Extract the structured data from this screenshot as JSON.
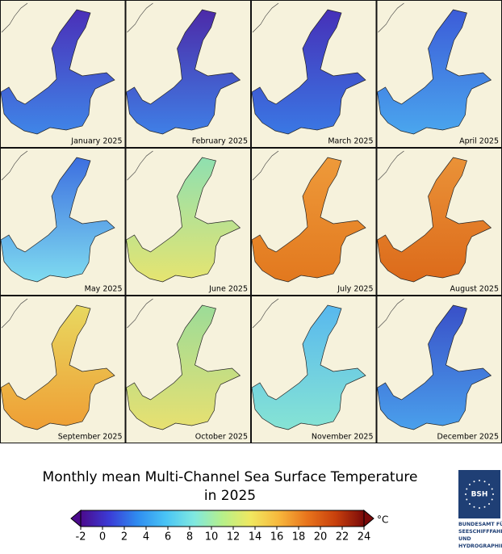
{
  "panels": [
    {
      "label": "January 2025",
      "colors": [
        "#4a2fb8",
        "#3f86e8"
      ]
    },
    {
      "label": "February 2025",
      "colors": [
        "#4c2aa8",
        "#3f7fe6"
      ]
    },
    {
      "label": "March 2025",
      "colors": [
        "#4630b8",
        "#3a78e4"
      ]
    },
    {
      "label": "April 2025",
      "colors": [
        "#3c5cd8",
        "#4aa6ee"
      ]
    },
    {
      "label": "May 2025",
      "colors": [
        "#3d6fe0",
        "#7fdcf0"
      ]
    },
    {
      "label": "June 2025",
      "colors": [
        "#8fe0b0",
        "#e6e470"
      ]
    },
    {
      "label": "July 2025",
      "colors": [
        "#ee9a3a",
        "#e2781e"
      ]
    },
    {
      "label": "August 2025",
      "colors": [
        "#ea9238",
        "#dc6a1a"
      ]
    },
    {
      "label": "September 2025",
      "colors": [
        "#e8d860",
        "#ef9e34"
      ]
    },
    {
      "label": "October 2025",
      "colors": [
        "#9cdc98",
        "#e8e070"
      ]
    },
    {
      "label": "November 2025",
      "colors": [
        "#58b8ee",
        "#86e4d4"
      ]
    },
    {
      "label": "December 2025",
      "colors": [
        "#3950c8",
        "#4aa0ec"
      ]
    }
  ],
  "title": [
    "Monthly mean Multi-Channel Sea Surface Temperature",
    "in 2025"
  ],
  "colorbar": {
    "range": [
      -2,
      24
    ],
    "ticks": [
      -2,
      0,
      2,
      4,
      6,
      8,
      10,
      12,
      14,
      16,
      18,
      20,
      22,
      24
    ],
    "unit": "°C",
    "colors": [
      "#4b0a8c",
      "#3b3bd6",
      "#2f8cf0",
      "#49c4f5",
      "#7fe8e0",
      "#b6f08a",
      "#f0e860",
      "#f7b73c",
      "#e8741c",
      "#c8400c",
      "#7a0a0a"
    ]
  },
  "logo": {
    "mark": "BSH",
    "lines": [
      "BUNDESAMT FÜR",
      "SEESCHIFFFAHRT",
      "UND",
      "HYDROGRAPHIE"
    ]
  }
}
